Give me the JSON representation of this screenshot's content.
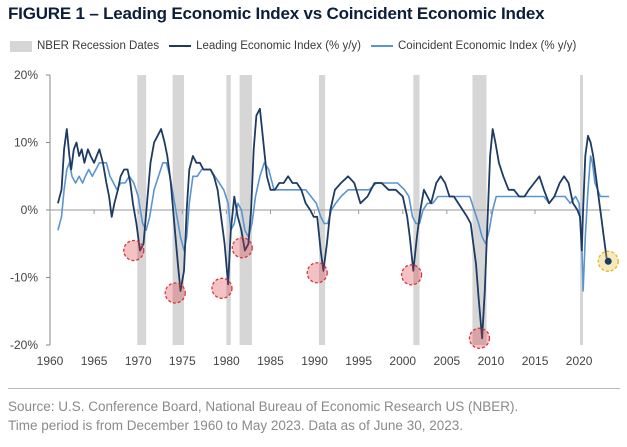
{
  "title": "FIGURE 1 – Leading Economic Index vs Coincident Economic Index",
  "legend": {
    "recession": "NBER Recession Dates",
    "leading": "Leading Economic Index (% y/y)",
    "coincident": "Coincident Economic Index (% y/y)"
  },
  "colors": {
    "leading": "#1d3b63",
    "coincident": "#5b95cf",
    "recession": "#d6d6d6",
    "marker_red": "#d9343a",
    "marker_yellow": "#e5b61e",
    "axis": "#8a8a8a"
  },
  "source": {
    "line1": "Source: U.S. Conference Board, National Bureau of Economic Research US (NBER).",
    "line2": "Time period is from December 1960 to May 2023. Data as of June 30, 2023."
  },
  "chart_data": {
    "type": "line",
    "title": "Leading Economic Index vs Coincident Economic Index",
    "xlabel": "",
    "ylabel": "% y/y",
    "xlim": [
      1960,
      2023.5
    ],
    "ylim": [
      -20,
      20
    ],
    "x_ticks": [
      1960,
      1965,
      1970,
      1975,
      1980,
      1985,
      1990,
      1995,
      2000,
      2005,
      2010,
      2015,
      2020
    ],
    "y_ticks": [
      -20,
      -10,
      0,
      10,
      20
    ],
    "y_tick_labels": [
      "-20%",
      "-10%",
      "0%",
      "10%",
      "20%"
    ],
    "grid": false,
    "legend_position": "top",
    "recessions": [
      [
        1969.9,
        1970.9
      ],
      [
        1973.9,
        1975.2
      ],
      [
        1980.0,
        1980.5
      ],
      [
        1981.5,
        1982.9
      ],
      [
        1990.5,
        1991.2
      ],
      [
        2001.2,
        2001.9
      ],
      [
        2007.9,
        2009.5
      ],
      [
        2020.1,
        2020.4
      ]
    ],
    "series": [
      {
        "name": "Leading Economic Index (% y/y)",
        "x": [
          1960.9,
          1961.3,
          1961.6,
          1961.9,
          1962.2,
          1962.4,
          1962.7,
          1963.0,
          1963.3,
          1963.6,
          1963.9,
          1964.3,
          1964.6,
          1965.0,
          1965.3,
          1965.6,
          1966.0,
          1966.4,
          1966.7,
          1967.0,
          1967.3,
          1967.7,
          1968.0,
          1968.4,
          1968.8,
          1969.1,
          1969.4,
          1969.8,
          1970.2,
          1970.6,
          1971.0,
          1971.4,
          1971.8,
          1972.2,
          1972.6,
          1973.0,
          1973.3,
          1973.7,
          1974.1,
          1974.5,
          1974.8,
          1975.2,
          1975.5,
          1975.8,
          1976.2,
          1976.6,
          1977.0,
          1977.4,
          1977.8,
          1978.2,
          1978.6,
          1979.0,
          1979.4,
          1979.8,
          1980.2,
          1980.5,
          1980.9,
          1981.3,
          1981.7,
          1982.1,
          1982.5,
          1982.8,
          1983.1,
          1983.4,
          1983.8,
          1984.2,
          1984.6,
          1985.0,
          1985.5,
          1986.0,
          1986.5,
          1987.0,
          1987.5,
          1988.0,
          1988.5,
          1989.0,
          1989.5,
          1989.9,
          1990.3,
          1990.7,
          1991.0,
          1991.4,
          1991.8,
          1992.3,
          1993.0,
          1993.8,
          1994.5,
          1995.2,
          1996.0,
          1996.8,
          1997.6,
          1998.4,
          1999.2,
          2000.0,
          2000.5,
          2000.8,
          2001.2,
          2001.6,
          2002.0,
          2002.4,
          2002.8,
          2003.2,
          2003.8,
          2004.3,
          2004.8,
          2005.3,
          2005.8,
          2006.3,
          2006.8,
          2007.3,
          2007.7,
          2008.0,
          2008.3,
          2008.6,
          2009.0,
          2009.3,
          2009.6,
          2009.9,
          2010.2,
          2010.5,
          2010.9,
          2011.4,
          2012.0,
          2012.6,
          2013.2,
          2013.8,
          2014.3,
          2014.9,
          2015.5,
          2016.0,
          2016.6,
          2017.2,
          2017.8,
          2018.3,
          2018.8,
          2019.3,
          2019.8,
          2020.1,
          2020.3,
          2020.45,
          2020.7,
          2021.0,
          2021.3,
          2021.6,
          2021.9,
          2022.2,
          2022.5,
          2022.8,
          2023.1,
          2023.4
        ],
        "values": [
          1,
          3,
          9,
          12,
          8,
          6,
          9,
          10,
          8,
          9,
          7,
          9,
          8,
          7,
          8,
          9,
          7,
          4,
          2,
          -1,
          1,
          3,
          5,
          6,
          6,
          4,
          1,
          -2,
          -6,
          -5,
          1,
          7,
          10,
          11,
          12,
          10,
          8,
          4,
          -2,
          -8,
          -12,
          -9,
          0,
          6,
          8,
          7,
          7,
          6,
          6,
          6,
          5,
          3,
          -1,
          -5,
          -11,
          -3,
          2,
          -1,
          -3,
          -6,
          -5,
          0,
          9,
          14,
          15,
          10,
          5,
          3,
          3,
          4,
          4,
          5,
          4,
          4,
          3,
          1,
          0,
          -1,
          -1,
          -6,
          -9,
          -5,
          0,
          3,
          4,
          5,
          4,
          1,
          2,
          4,
          4,
          3,
          3,
          2,
          -1,
          -4,
          -9,
          -4,
          0,
          3,
          2,
          1,
          4,
          5,
          4,
          2,
          2,
          1,
          0,
          -1,
          -2,
          -5,
          -8,
          -13,
          -19,
          -12,
          -2,
          8,
          12,
          10,
          7,
          5,
          3,
          3,
          2,
          2,
          3,
          4,
          5,
          3,
          1,
          2,
          4,
          5,
          4,
          1,
          0,
          -1,
          -6,
          0,
          8,
          11,
          10,
          8,
          5,
          2,
          -1,
          -4,
          -7,
          -8
        ]
      },
      {
        "name": "Coincident Economic Index (% y/y)",
        "x": [
          1960.9,
          1961.3,
          1961.6,
          1961.9,
          1962.2,
          1962.5,
          1962.9,
          1963.3,
          1963.7,
          1964.0,
          1964.4,
          1964.8,
          1965.2,
          1965.6,
          1966.0,
          1966.4,
          1966.8,
          1967.2,
          1967.6,
          1968.0,
          1968.5,
          1969.0,
          1969.5,
          1970.0,
          1970.5,
          1970.9,
          1971.3,
          1971.8,
          1972.3,
          1972.8,
          1973.2,
          1973.6,
          1974.0,
          1974.4,
          1974.8,
          1975.2,
          1975.5,
          1975.8,
          1976.2,
          1976.7,
          1977.2,
          1977.7,
          1978.2,
          1978.7,
          1979.2,
          1979.7,
          1980.2,
          1980.5,
          1980.9,
          1981.3,
          1981.7,
          1982.1,
          1982.5,
          1982.9,
          1983.3,
          1983.8,
          1984.3,
          1984.8,
          1985.4,
          1986.0,
          1986.6,
          1987.2,
          1987.8,
          1988.4,
          1989.0,
          1989.6,
          1990.2,
          1990.7,
          1991.1,
          1991.5,
          1991.9,
          1992.4,
          1993.0,
          1993.8,
          1994.6,
          1995.4,
          1996.2,
          1997.0,
          1997.8,
          1998.6,
          1999.4,
          2000.2,
          2000.7,
          2001.1,
          2001.5,
          2001.9,
          2002.3,
          2002.8,
          2003.4,
          2004.0,
          2004.6,
          2005.2,
          2005.8,
          2006.4,
          2007.0,
          2007.6,
          2008.1,
          2008.6,
          2009.0,
          2009.4,
          2009.8,
          2010.2,
          2010.6,
          2011.2,
          2011.8,
          2012.4,
          2013.0,
          2013.6,
          2014.2,
          2014.8,
          2015.4,
          2016.0,
          2016.6,
          2017.2,
          2017.8,
          2018.4,
          2019.0,
          2019.6,
          2020.0,
          2020.3,
          2020.45,
          2020.7,
          2021.0,
          2021.3,
          2021.5,
          2021.8,
          2022.1,
          2022.4,
          2022.7,
          2023.0,
          2023.4
        ],
        "values": [
          -3,
          -1,
          3,
          6,
          7,
          5,
          4,
          5,
          4,
          5,
          6,
          5,
          6,
          7,
          7,
          7,
          5,
          4,
          3,
          4,
          4,
          5,
          4,
          2,
          -2,
          -3,
          -1,
          3,
          5,
          7,
          7,
          5,
          2,
          -1,
          -4,
          -6,
          -4,
          1,
          5,
          5,
          6,
          6,
          6,
          5,
          4,
          3,
          1,
          -3,
          -2,
          1,
          0,
          -3,
          -4,
          -2,
          2,
          5,
          7,
          6,
          3,
          3,
          3,
          3,
          3,
          3,
          3,
          2,
          1,
          -1,
          -2,
          -2,
          0,
          1,
          2,
          3,
          3,
          3,
          3,
          4,
          4,
          4,
          4,
          3,
          2,
          -1,
          -2,
          -2,
          0,
          1,
          1,
          2,
          2,
          2,
          2,
          2,
          2,
          2,
          0,
          -2,
          -4,
          -5,
          -3,
          0,
          2,
          2,
          2,
          2,
          2,
          2,
          2,
          2,
          2,
          2,
          1,
          2,
          2,
          2,
          1,
          2,
          1,
          -5,
          -12,
          -4,
          3,
          8,
          7,
          4,
          3,
          2,
          2,
          2,
          2
        ]
      }
    ],
    "markers": [
      {
        "x": 1969.5,
        "y": -6,
        "color": "red"
      },
      {
        "x": 1974.2,
        "y": -12.3,
        "color": "red"
      },
      {
        "x": 1979.5,
        "y": -11.6,
        "color": "red"
      },
      {
        "x": 1981.8,
        "y": -5.6,
        "color": "red"
      },
      {
        "x": 1990.3,
        "y": -9.3,
        "color": "red"
      },
      {
        "x": 2001.0,
        "y": -9.6,
        "color": "red"
      },
      {
        "x": 2008.7,
        "y": -19,
        "color": "red"
      },
      {
        "x": 2023.3,
        "y": -7.6,
        "color": "yellow"
      }
    ]
  }
}
